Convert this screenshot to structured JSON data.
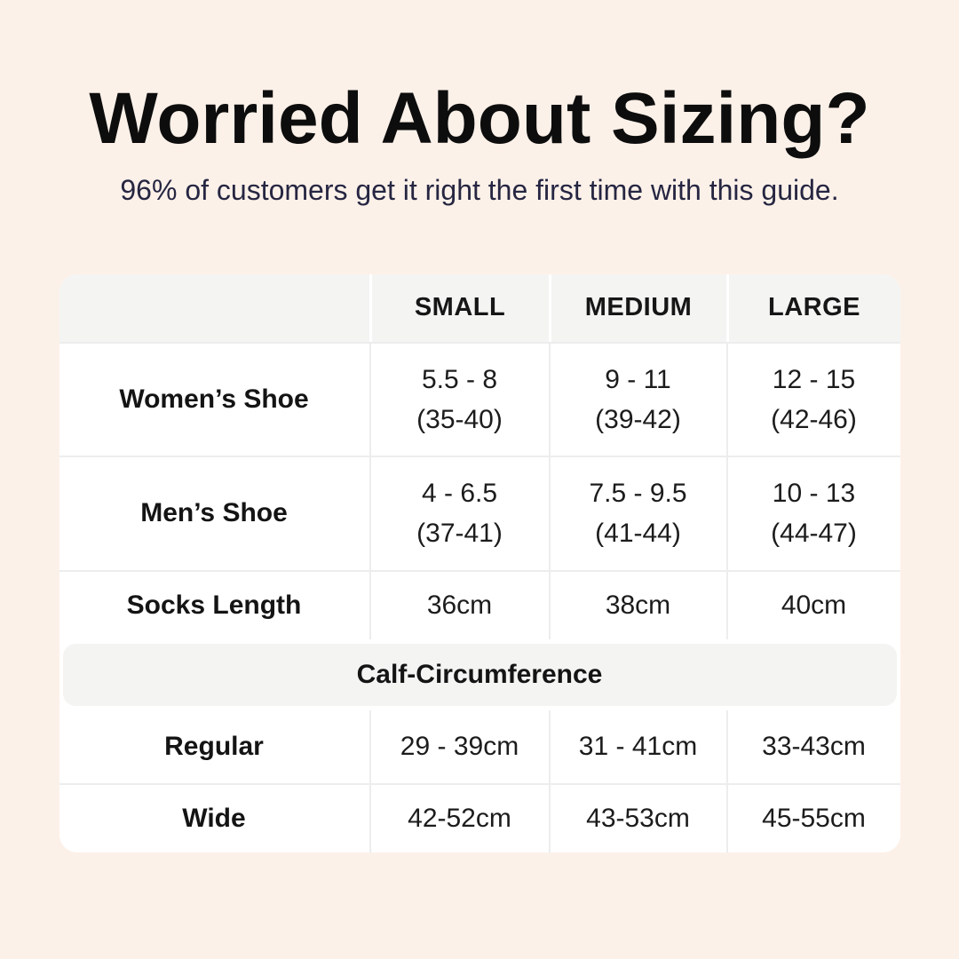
{
  "header": {
    "title": "Worried About Sizing?",
    "subtitle": "96% of customers get it right the first time with this guide."
  },
  "table": {
    "column_headers": [
      "SMALL",
      "MEDIUM",
      "LARGE"
    ],
    "shoe_rows": [
      {
        "label": "Women’s Shoe",
        "values": [
          [
            "5.5 - 8",
            "(35-40)"
          ],
          [
            "9 - 11",
            "(39-42)"
          ],
          [
            "12 - 15",
            "(42-46)"
          ]
        ]
      },
      {
        "label": "Men’s Shoe",
        "values": [
          [
            "4 - 6.5",
            "(37-41)"
          ],
          [
            "7.5 - 9.5",
            "(41-44)"
          ],
          [
            "10 - 13",
            "(44-47)"
          ]
        ]
      }
    ],
    "socks_row": {
      "label": "Socks Length",
      "values": [
        "36cm",
        "38cm",
        "40cm"
      ]
    },
    "section_header": "Calf-Circumference",
    "calf_rows": [
      {
        "label": "Regular",
        "values": [
          "29 - 39cm",
          "31 - 41cm",
          "33-43cm"
        ]
      },
      {
        "label": "Wide",
        "values": [
          "42-52cm",
          "43-53cm",
          "45-55cm"
        ]
      }
    ]
  },
  "colors": {
    "page_background": "#fcf1e9",
    "card_background": "#ffffff",
    "header_band_background": "#f4f4f3",
    "divider": "#ededed",
    "title_text": "#0d0d0d",
    "subtitle_text": "#262642",
    "body_text": "#1c1c1c"
  },
  "chart_data": {
    "type": "table",
    "title": "Worried About Sizing?",
    "subtitle": "96% of customers get it right the first time with this guide.",
    "columns": [
      "",
      "SMALL",
      "MEDIUM",
      "LARGE"
    ],
    "rows": [
      [
        "Women’s Shoe",
        "5.5 - 8 (35-40)",
        "9 - 11 (39-42)",
        "12 - 15 (42-46)"
      ],
      [
        "Men’s Shoe",
        "4 - 6.5 (37-41)",
        "7.5 - 9.5 (41-44)",
        "10 - 13 (44-47)"
      ],
      [
        "Socks Length",
        "36cm",
        "38cm",
        "40cm"
      ],
      [
        "Calf-Circumference",
        "",
        "",
        ""
      ],
      [
        "Regular",
        "29 - 39cm",
        "31 - 41cm",
        "33-43cm"
      ],
      [
        "Wide",
        "42-52cm",
        "43-53cm",
        "45-55cm"
      ]
    ],
    "layout_hints": {
      "section_row_index": 3,
      "section_row_style": "full-width gray band",
      "header_row_style": "gray background, bold uppercase"
    }
  }
}
